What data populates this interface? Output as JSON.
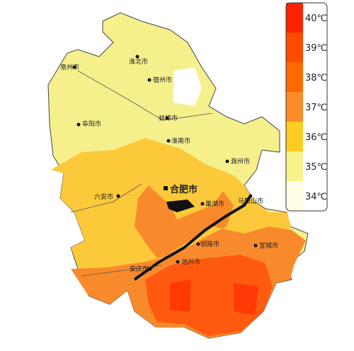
{
  "map": {
    "cities": [
      "亳州市",
      "淮北市",
      "宿州市",
      "蚌埠市",
      "阜阳市",
      "淮南市",
      "滁州市",
      "合肥市",
      "六安市",
      "巢湖市",
      "马鞍山市",
      "宣城市",
      "铜陵市",
      "安庆市",
      "池州市"
    ],
    "legend": [
      {
        "label": "40℃",
        "color": "#ff2200"
      },
      {
        "label": "39℃",
        "color": "#ff4a00"
      },
      {
        "label": "38℃",
        "color": "#ff6a00"
      },
      {
        "label": "37℃",
        "color": "#ff8c2a"
      },
      {
        "label": "36℃",
        "color": "#ffcc22"
      },
      {
        "label": "35℃",
        "color": "#f8f28a"
      },
      {
        "label": "34℃",
        "color": "#fffde6"
      }
    ]
  }
}
